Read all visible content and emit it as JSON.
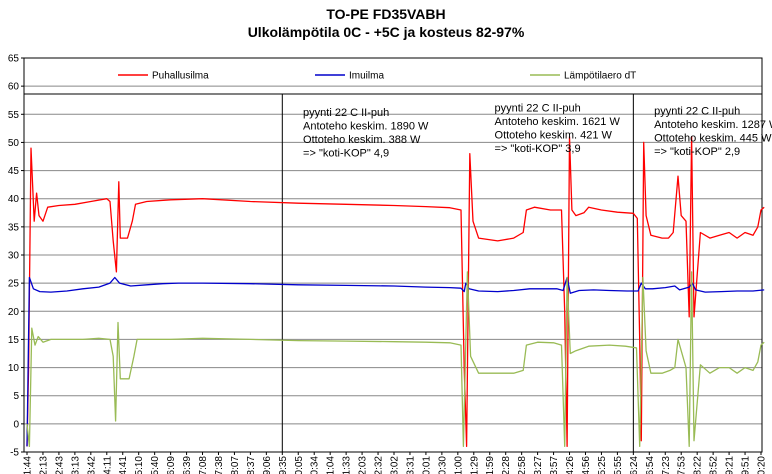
{
  "chart_data": {
    "type": "line",
    "title": "TO-PE FD35VABH",
    "subtitle": "Ulkolämpötila 0C - +5C ja kosteus 82-97%",
    "xlabel": "",
    "ylabel": "",
    "ylim": [
      -5,
      65
    ],
    "y_ticks": [
      -5,
      0,
      5,
      10,
      15,
      20,
      25,
      30,
      35,
      40,
      45,
      50,
      55,
      60,
      65
    ],
    "grid": true,
    "legend_position": "top",
    "x_tick_labels": [
      "11:44",
      "12:13",
      "12:43",
      "13:13",
      "13:42",
      "14:11",
      "14:41",
      "15:10",
      "15:40",
      "16:09",
      "16:39",
      "17:08",
      "17:38",
      "18:07",
      "18:37",
      "19:06",
      "19:35",
      "20:05",
      "20:34",
      "21:04",
      "21:33",
      "22:03",
      "22:32",
      "23:02",
      "23:31",
      "0:01",
      "0:30",
      "1:00",
      "1:29",
      "1:59",
      "2:28",
      "2:58",
      "3:27",
      "3:57",
      "4:26",
      "4:56",
      "5:25",
      "5:55",
      "6:24",
      "6:54",
      "7:23",
      "7:53",
      "8:22",
      "8:52",
      "9:21",
      "9:51",
      "10:20"
    ],
    "separators_at_tick_index": [
      16,
      38
    ],
    "series": [
      {
        "name": "Puhallusilma",
        "color": "#ff0000",
        "points": [
          [
            0,
            -4
          ],
          [
            0.1,
            10
          ],
          [
            0.25,
            49
          ],
          [
            0.45,
            36
          ],
          [
            0.6,
            41
          ],
          [
            0.75,
            37
          ],
          [
            1,
            36
          ],
          [
            1.3,
            38.5
          ],
          [
            2,
            38.8
          ],
          [
            3,
            39
          ],
          [
            4,
            39.5
          ],
          [
            5,
            40
          ],
          [
            5.2,
            39.5
          ],
          [
            5.4,
            32.5
          ],
          [
            5.6,
            27
          ],
          [
            5.75,
            43
          ],
          [
            5.85,
            33
          ],
          [
            6.3,
            33
          ],
          [
            6.6,
            36
          ],
          [
            6.8,
            39
          ],
          [
            7.5,
            39.5
          ],
          [
            9,
            39.8
          ],
          [
            11,
            40
          ],
          [
            14,
            39.5
          ],
          [
            17,
            39.2
          ],
          [
            20,
            39
          ],
          [
            23,
            38.8
          ],
          [
            25,
            38.6
          ],
          [
            26.5,
            38.4
          ],
          [
            27.2,
            38
          ],
          [
            27.4,
            10
          ],
          [
            27.55,
            -4
          ],
          [
            27.75,
            48
          ],
          [
            27.95,
            36
          ],
          [
            28.3,
            33
          ],
          [
            29.5,
            32.5
          ],
          [
            30.5,
            33
          ],
          [
            31.1,
            34
          ],
          [
            31.3,
            38
          ],
          [
            31.8,
            38.5
          ],
          [
            32.8,
            38
          ],
          [
            33.5,
            38
          ],
          [
            33.7,
            20
          ],
          [
            33.85,
            -4
          ],
          [
            34,
            51
          ],
          [
            34.15,
            38
          ],
          [
            34.4,
            37
          ],
          [
            34.9,
            37.5
          ],
          [
            35.2,
            38.5
          ],
          [
            36,
            38
          ],
          [
            37,
            37.6
          ],
          [
            38,
            37.4
          ],
          [
            38.25,
            36.5
          ],
          [
            38.4,
            15
          ],
          [
            38.5,
            -3
          ],
          [
            38.65,
            50
          ],
          [
            38.8,
            37
          ],
          [
            39.1,
            33.5
          ],
          [
            39.8,
            33
          ],
          [
            40.2,
            33
          ],
          [
            40.5,
            34
          ],
          [
            40.8,
            44
          ],
          [
            41,
            37
          ],
          [
            41.3,
            36
          ],
          [
            41.5,
            19
          ],
          [
            41.65,
            51
          ],
          [
            41.8,
            19
          ],
          [
            42.2,
            34
          ],
          [
            42.8,
            33
          ],
          [
            43.4,
            33.5
          ],
          [
            44,
            34
          ],
          [
            44.5,
            33
          ],
          [
            45,
            34
          ],
          [
            45.5,
            33.5
          ],
          [
            45.8,
            35
          ],
          [
            46,
            38
          ],
          [
            46.2,
            38.5
          ]
        ]
      },
      {
        "name": "Imuilma",
        "color": "#0000cc",
        "points": [
          [
            0,
            -4
          ],
          [
            0.15,
            26
          ],
          [
            0.4,
            24
          ],
          [
            0.8,
            23.5
          ],
          [
            1.5,
            23.4
          ],
          [
            2.5,
            23.6
          ],
          [
            3.5,
            24
          ],
          [
            4.5,
            24.3
          ],
          [
            5.2,
            25
          ],
          [
            5.5,
            26
          ],
          [
            5.8,
            25
          ],
          [
            6.5,
            24.5
          ],
          [
            7.5,
            24.7
          ],
          [
            8.5,
            24.9
          ],
          [
            9.5,
            25
          ],
          [
            11,
            25
          ],
          [
            14,
            24.9
          ],
          [
            17,
            24.7
          ],
          [
            20,
            24.6
          ],
          [
            23,
            24.5
          ],
          [
            25,
            24.3
          ],
          [
            26.5,
            24.2
          ],
          [
            27.2,
            24.1
          ],
          [
            27.4,
            23.5
          ],
          [
            27.5,
            25
          ],
          [
            27.7,
            24
          ],
          [
            28.3,
            23.6
          ],
          [
            29.5,
            23.5
          ],
          [
            30.5,
            23.7
          ],
          [
            31.5,
            24
          ],
          [
            33.2,
            24
          ],
          [
            33.6,
            23.7
          ],
          [
            33.85,
            26
          ],
          [
            34.05,
            23.2
          ],
          [
            34.6,
            23.7
          ],
          [
            35.5,
            23.8
          ],
          [
            36.5,
            23.7
          ],
          [
            37.6,
            23.6
          ],
          [
            38.3,
            23.6
          ],
          [
            38.5,
            25
          ],
          [
            38.75,
            24
          ],
          [
            39.2,
            24
          ],
          [
            40,
            24.2
          ],
          [
            40.6,
            24.5
          ],
          [
            40.9,
            23.8
          ],
          [
            41.5,
            24.3
          ],
          [
            41.7,
            25
          ],
          [
            41.9,
            23.8
          ],
          [
            42.5,
            23.4
          ],
          [
            43.5,
            23.5
          ],
          [
            44.5,
            23.6
          ],
          [
            45.5,
            23.6
          ],
          [
            46.2,
            23.8
          ]
        ]
      },
      {
        "name": "Lämpötilaero dT",
        "color": "#99bb55",
        "points": [
          [
            0,
            0
          ],
          [
            0.15,
            -4
          ],
          [
            0.3,
            17
          ],
          [
            0.5,
            14
          ],
          [
            0.7,
            15.5
          ],
          [
            1,
            14.5
          ],
          [
            1.5,
            15
          ],
          [
            2.5,
            15
          ],
          [
            3.5,
            15
          ],
          [
            4.5,
            15.2
          ],
          [
            5.2,
            15
          ],
          [
            5.4,
            12
          ],
          [
            5.55,
            0.5
          ],
          [
            5.7,
            18
          ],
          [
            5.85,
            8
          ],
          [
            6.4,
            8
          ],
          [
            6.7,
            12
          ],
          [
            6.9,
            15
          ],
          [
            7.5,
            15
          ],
          [
            9,
            15
          ],
          [
            11,
            15.2
          ],
          [
            14,
            15
          ],
          [
            17,
            14.8
          ],
          [
            20,
            14.7
          ],
          [
            23,
            14.6
          ],
          [
            25,
            14.5
          ],
          [
            26.5,
            14.4
          ],
          [
            27.2,
            14
          ],
          [
            27.35,
            -4
          ],
          [
            27.6,
            27
          ],
          [
            27.8,
            12
          ],
          [
            28.3,
            9
          ],
          [
            29.5,
            9
          ],
          [
            30.5,
            9
          ],
          [
            31.1,
            9.5
          ],
          [
            31.3,
            14
          ],
          [
            32,
            14.5
          ],
          [
            33,
            14.4
          ],
          [
            33.5,
            14
          ],
          [
            33.7,
            -4
          ],
          [
            33.85,
            26
          ],
          [
            34.05,
            12.5
          ],
          [
            34.4,
            13
          ],
          [
            35.2,
            13.8
          ],
          [
            36.5,
            14
          ],
          [
            37.5,
            13.8
          ],
          [
            38.2,
            13.5
          ],
          [
            38.4,
            -4
          ],
          [
            38.6,
            26
          ],
          [
            38.8,
            13
          ],
          [
            39.1,
            9
          ],
          [
            39.8,
            9
          ],
          [
            40.3,
            9.5
          ],
          [
            40.6,
            10
          ],
          [
            40.8,
            15
          ],
          [
            41.1,
            12
          ],
          [
            41.3,
            10
          ],
          [
            41.5,
            -4
          ],
          [
            41.65,
            27
          ],
          [
            41.8,
            -3
          ],
          [
            42.2,
            10.5
          ],
          [
            42.8,
            9
          ],
          [
            43.4,
            10
          ],
          [
            44,
            10
          ],
          [
            44.5,
            9
          ],
          [
            45,
            10
          ],
          [
            45.5,
            9.5
          ],
          [
            45.8,
            11
          ],
          [
            46,
            14
          ],
          [
            46.2,
            14.5
          ]
        ]
      }
    ],
    "annotations": [
      {
        "lines": [
          "pyynti 22 C II-puh",
          "Antoteho keskim. 1890 W",
          "Ottoteho keskim. 388 W",
          "=> \"koti-KOP\" 4,9"
        ],
        "x_tick_index": 17.3,
        "y_value": 54.7
      },
      {
        "lines": [
          "pyynti 22 C II-puh",
          "Antoteho keskim. 1621 W",
          "Ottoteho keskim. 421 W",
          "=> \"koti-KOP\" 3,9"
        ],
        "x_tick_index": 29.3,
        "y_value": 55.5
      },
      {
        "lines": [
          "pyynti 22 C II-puh",
          "Antoteho keskim. 1287 W",
          "Ottoteho keskim. 445 W",
          "=> \"koti-KOP\" 2,9"
        ],
        "x_tick_index": 39.3,
        "y_value": 55
      }
    ]
  }
}
